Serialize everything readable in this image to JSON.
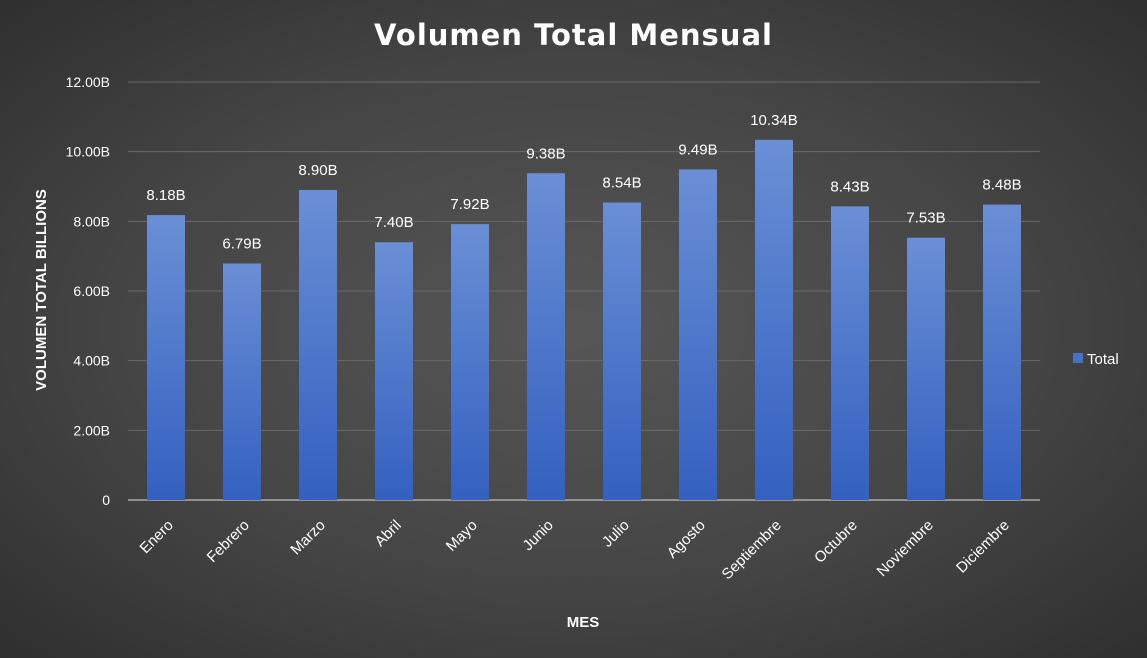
{
  "chart_data": {
    "type": "bar",
    "title": "Volumen Total Mensual",
    "xlabel": "MES",
    "ylabel": "VOLUMEN TOTAL BILLIONS",
    "categories": [
      "Enero",
      "Febrero",
      "Marzo",
      "Abril",
      "Mayo",
      "Junio",
      "Julio",
      "Agosto",
      "Septiembre",
      "Octubre",
      "Noviembre",
      "Diciembre"
    ],
    "series": [
      {
        "name": "Total",
        "color": "#4472C4",
        "values": [
          8.18,
          6.79,
          8.9,
          7.4,
          7.92,
          9.38,
          8.54,
          9.49,
          10.34,
          8.43,
          7.53,
          8.48
        ],
        "labels": [
          "8.18B",
          "6.79B",
          "8.90B",
          "7.40B",
          "7.92B",
          "9.38B",
          "8.54B",
          "9.49B",
          "10.34B",
          "8.43B",
          "7.53B",
          "8.48B"
        ]
      }
    ],
    "ylim": [
      0,
      12
    ],
    "yticks": [
      0,
      2,
      4,
      6,
      8,
      10,
      12
    ],
    "ytick_labels": [
      "0",
      "2.00B",
      "4.00B",
      "6.00B",
      "8.00B",
      "10.00B",
      "12.00B"
    ],
    "grid": true,
    "legend_position": "right"
  }
}
